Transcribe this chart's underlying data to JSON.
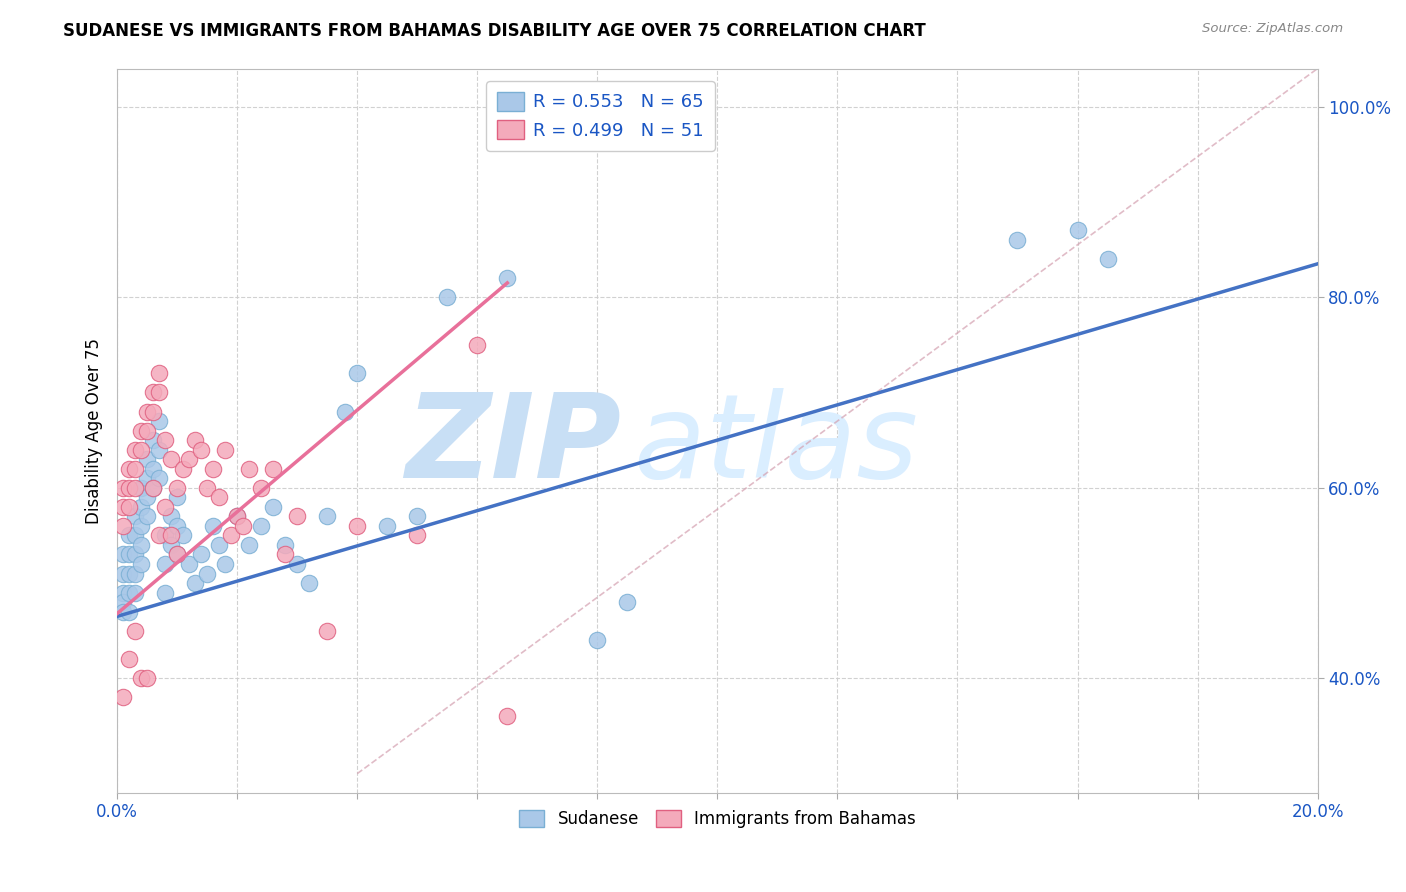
{
  "title": "SUDANESE VS IMMIGRANTS FROM BAHAMAS DISABILITY AGE OVER 75 CORRELATION CHART",
  "source": "Source: ZipAtlas.com",
  "ylabel": "Disability Age Over 75",
  "xlim": [
    0.0,
    0.2
  ],
  "ylim": [
    0.28,
    1.04
  ],
  "xticks": [
    0.0,
    0.02,
    0.04,
    0.06,
    0.08,
    0.1,
    0.12,
    0.14,
    0.16,
    0.18,
    0.2
  ],
  "yticks": [
    0.4,
    0.6,
    0.8,
    1.0
  ],
  "ytick_labels": [
    "40.0%",
    "60.0%",
    "80.0%",
    "100.0%"
  ],
  "blue_R": 0.553,
  "blue_N": 65,
  "pink_R": 0.499,
  "pink_N": 51,
  "blue_color": "#aac8e8",
  "blue_line_color": "#4472c4",
  "pink_color": "#f4aabb",
  "pink_line_color": "#e8709a",
  "blue_edge": "#7aafd4",
  "pink_edge": "#e06080",
  "legend_color": "#1a56c4",
  "watermark_color": "#daeeff",
  "blue_scatter_x": [
    0.001,
    0.001,
    0.001,
    0.001,
    0.001,
    0.002,
    0.002,
    0.002,
    0.002,
    0.002,
    0.003,
    0.003,
    0.003,
    0.003,
    0.003,
    0.004,
    0.004,
    0.004,
    0.004,
    0.004,
    0.005,
    0.005,
    0.005,
    0.005,
    0.006,
    0.006,
    0.006,
    0.007,
    0.007,
    0.007,
    0.008,
    0.008,
    0.008,
    0.009,
    0.009,
    0.01,
    0.01,
    0.01,
    0.011,
    0.012,
    0.013,
    0.014,
    0.015,
    0.016,
    0.017,
    0.018,
    0.02,
    0.022,
    0.024,
    0.026,
    0.028,
    0.03,
    0.032,
    0.035,
    0.038,
    0.04,
    0.045,
    0.05,
    0.055,
    0.065,
    0.08,
    0.085,
    0.15,
    0.16,
    0.165
  ],
  "blue_scatter_y": [
    0.53,
    0.51,
    0.49,
    0.48,
    0.47,
    0.55,
    0.53,
    0.51,
    0.49,
    0.47,
    0.57,
    0.55,
    0.53,
    0.51,
    0.49,
    0.6,
    0.58,
    0.56,
    0.54,
    0.52,
    0.63,
    0.61,
    0.59,
    0.57,
    0.65,
    0.62,
    0.6,
    0.67,
    0.64,
    0.61,
    0.55,
    0.52,
    0.49,
    0.57,
    0.54,
    0.59,
    0.56,
    0.53,
    0.55,
    0.52,
    0.5,
    0.53,
    0.51,
    0.56,
    0.54,
    0.52,
    0.57,
    0.54,
    0.56,
    0.58,
    0.54,
    0.52,
    0.5,
    0.57,
    0.68,
    0.72,
    0.56,
    0.57,
    0.8,
    0.82,
    0.44,
    0.48,
    0.86,
    0.87,
    0.84
  ],
  "pink_scatter_x": [
    0.001,
    0.001,
    0.001,
    0.001,
    0.002,
    0.002,
    0.002,
    0.002,
    0.003,
    0.003,
    0.003,
    0.003,
    0.004,
    0.004,
    0.004,
    0.005,
    0.005,
    0.005,
    0.006,
    0.006,
    0.006,
    0.007,
    0.007,
    0.007,
    0.008,
    0.008,
    0.009,
    0.009,
    0.01,
    0.01,
    0.011,
    0.012,
    0.013,
    0.014,
    0.015,
    0.016,
    0.017,
    0.018,
    0.019,
    0.02,
    0.021,
    0.022,
    0.024,
    0.026,
    0.028,
    0.03,
    0.035,
    0.04,
    0.05,
    0.06,
    0.065
  ],
  "pink_scatter_y": [
    0.6,
    0.58,
    0.56,
    0.38,
    0.62,
    0.6,
    0.58,
    0.42,
    0.64,
    0.62,
    0.6,
    0.45,
    0.66,
    0.64,
    0.4,
    0.68,
    0.66,
    0.4,
    0.7,
    0.68,
    0.6,
    0.72,
    0.7,
    0.55,
    0.65,
    0.58,
    0.63,
    0.55,
    0.6,
    0.53,
    0.62,
    0.63,
    0.65,
    0.64,
    0.6,
    0.62,
    0.59,
    0.64,
    0.55,
    0.57,
    0.56,
    0.62,
    0.6,
    0.62,
    0.53,
    0.57,
    0.45,
    0.56,
    0.55,
    0.75,
    0.36
  ],
  "blue_line_x": [
    0.0,
    0.2
  ],
  "blue_line_y": [
    0.465,
    0.835
  ],
  "pink_line_x": [
    0.0,
    0.065
  ],
  "pink_line_y": [
    0.468,
    0.815
  ],
  "ref_line_x": [
    0.04,
    0.2
  ],
  "ref_line_y": [
    0.3,
    1.04
  ]
}
